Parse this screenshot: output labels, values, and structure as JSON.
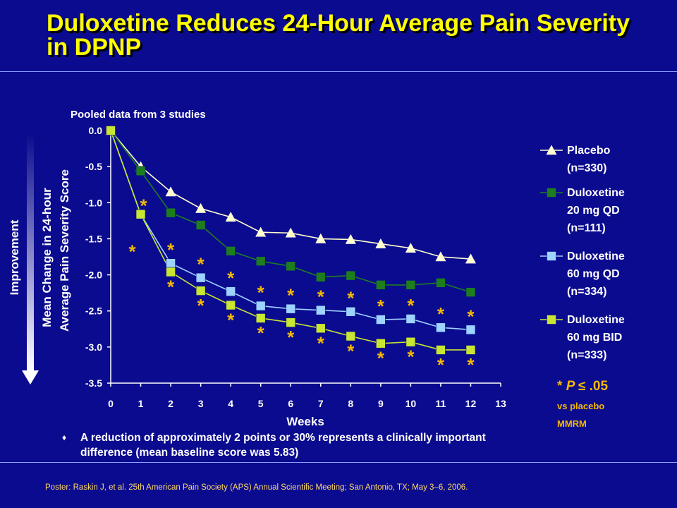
{
  "title": "Duloxetine Reduces 24-Hour Average Pain Severity in DPNP",
  "colors": {
    "background": "#0b0b8f",
    "title": "#ffff00",
    "placebo": "#ffffcc",
    "dlx20": "#1e7e1e",
    "dlx60qd": "#9ed2ff",
    "dlx60bid": "#c8e632",
    "asterisk": "#f5b800",
    "note": "#f5b800"
  },
  "chart_data": {
    "type": "line",
    "subtitle": "Pooled data from 3 studies",
    "xlabel": "Weeks",
    "ylabel": "Mean Change in 24-hour Average Pain Severity Score",
    "side_label": "Improvement",
    "xlim": [
      0,
      13
    ],
    "ylim": [
      -3.5,
      0
    ],
    "x_ticks": [
      "0",
      "1",
      "2",
      "3",
      "4",
      "5",
      "6",
      "7",
      "8",
      "9",
      "10",
      "11",
      "12",
      "13"
    ],
    "y_ticks": [
      "0.0",
      "-0.5",
      "-1.0",
      "-1.5",
      "-2.0",
      "-2.5",
      "-3.0",
      "-3.5"
    ],
    "legend_position": "right",
    "series": [
      {
        "name": "Placebo (n=330)",
        "legend_lines": [
          "Placebo",
          "(n=330)"
        ],
        "marker": "triangle",
        "x": [
          0,
          1,
          2,
          3,
          4,
          5,
          6,
          7,
          8,
          9,
          10,
          11,
          12
        ],
        "values": [
          0,
          -0.5,
          -0.85,
          -1.08,
          -1.2,
          -1.41,
          -1.42,
          -1.5,
          -1.51,
          -1.57,
          -1.63,
          -1.75,
          -1.78
        ]
      },
      {
        "name": "Duloxetine 20 mg QD (n=111)",
        "legend_lines": [
          "Duloxetine",
          "20 mg QD",
          "(n=111)"
        ],
        "marker": "square",
        "x": [
          0,
          1,
          2,
          3,
          4,
          5,
          6,
          7,
          8,
          9,
          10,
          11,
          12
        ],
        "values": [
          0,
          -0.56,
          -1.14,
          -1.31,
          -1.67,
          -1.81,
          -1.88,
          -2.03,
          -2.01,
          -2.14,
          -2.14,
          -2.11,
          -2.24
        ]
      },
      {
        "name": "Duloxetine 60 mg QD (n=334)",
        "legend_lines": [
          "Duloxetine",
          "60 mg QD",
          "(n=334)"
        ],
        "marker": "square",
        "x": [
          0,
          1,
          2,
          3,
          4,
          5,
          6,
          7,
          8,
          9,
          10,
          11,
          12
        ],
        "values": [
          0,
          -1.16,
          -1.84,
          -2.04,
          -2.23,
          -2.43,
          -2.47,
          -2.49,
          -2.51,
          -2.62,
          -2.61,
          -2.73,
          -2.76
        ]
      },
      {
        "name": "Duloxetine 60 mg BID (n=333)",
        "legend_lines": [
          "Duloxetine",
          "60 mg BID",
          "(n=333)"
        ],
        "marker": "square",
        "x": [
          0,
          1,
          2,
          3,
          4,
          5,
          6,
          7,
          8,
          9,
          10,
          11,
          12
        ],
        "values": [
          0,
          -1.16,
          -1.96,
          -2.22,
          -2.42,
          -2.6,
          -2.66,
          -2.74,
          -2.85,
          -2.95,
          -2.93,
          -3.04,
          -3.04
        ]
      }
    ],
    "significance": {
      "symbol": "*",
      "legend_p": "P",
      "legend_threshold": "≤ .05",
      "vs_text": "vs placebo",
      "method": "MMRM",
      "dlx60qd_weeks": [
        1,
        2,
        3,
        4,
        5,
        6,
        7,
        8,
        9,
        10,
        11,
        12
      ],
      "dlx60bid_weeks": [
        1,
        2,
        3,
        4,
        5,
        6,
        7,
        8,
        9,
        10,
        11,
        12
      ]
    }
  },
  "bullet": "A reduction of approximately 2 points or 30% represents a clinically important difference (mean baseline score was 5.83)",
  "citation": "Poster: Raskin J, et al. 25th American Pain Society (APS) Annual Scientific Meeting; San Antonio, TX; May 3–6, 2006."
}
